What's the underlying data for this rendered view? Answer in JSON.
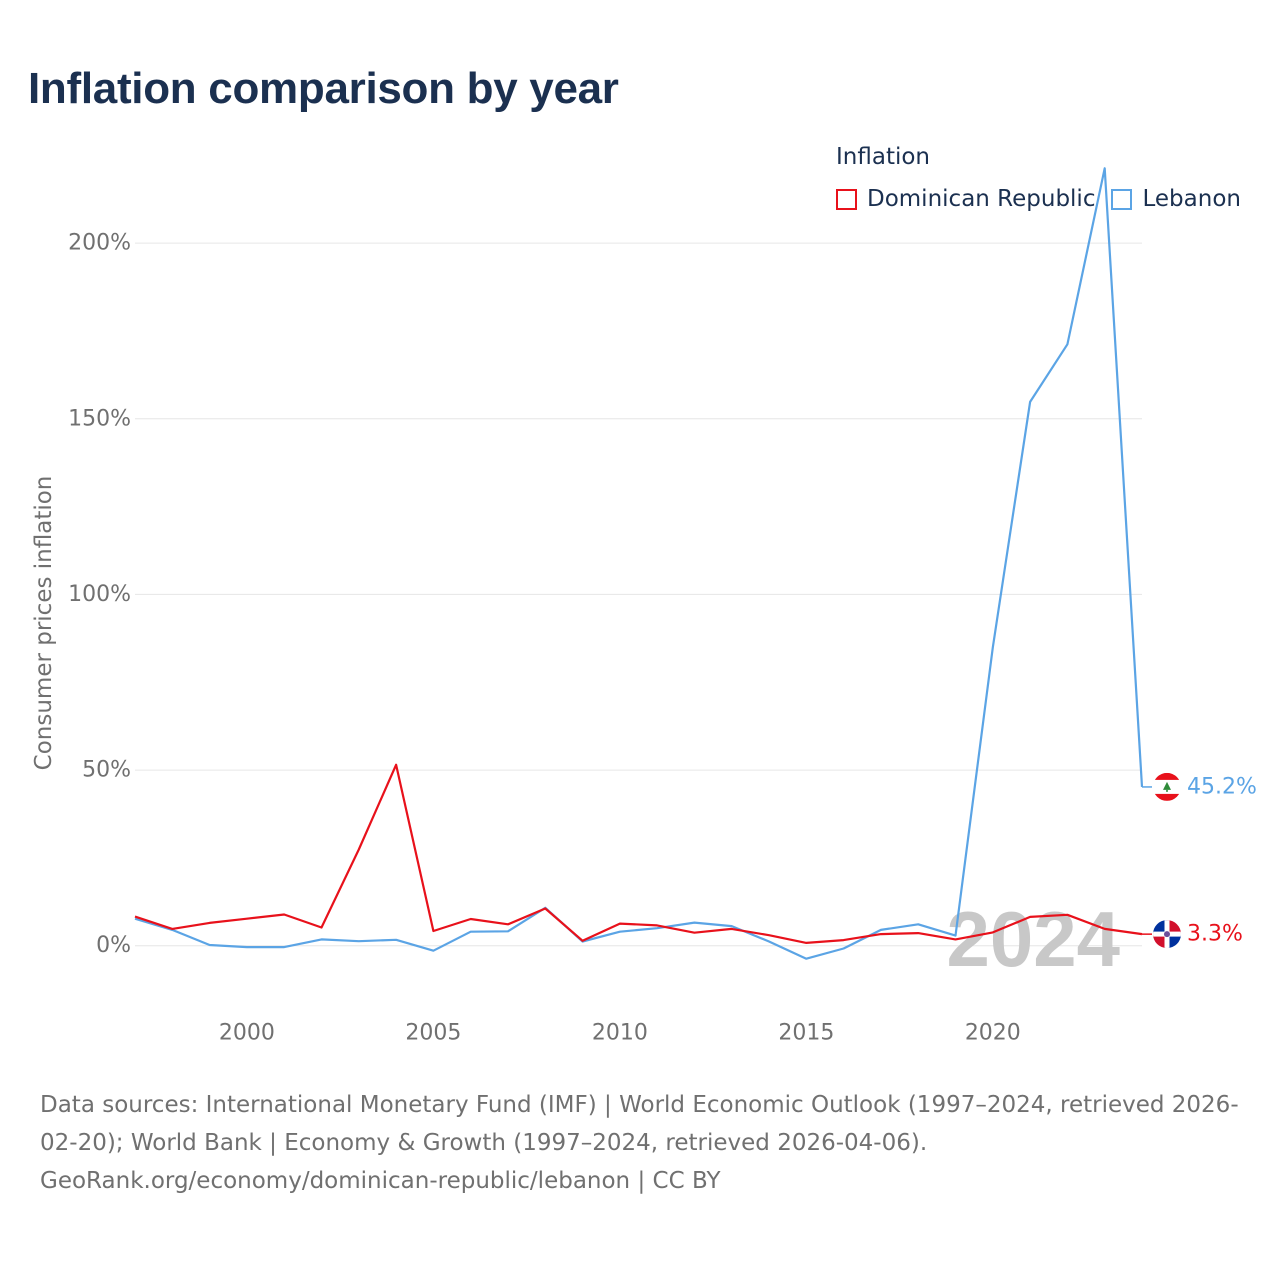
{
  "title": "Inflation comparison by year",
  "legend": {
    "title": "Inflation",
    "items": [
      {
        "label": "Dominican Republic",
        "color": "#e8111b"
      },
      {
        "label": "Lebanon",
        "color": "#5ba4e5"
      }
    ]
  },
  "watermark_year": "2024",
  "chart_data": {
    "type": "line",
    "title": "Inflation comparison by year",
    "xlabel": "",
    "ylabel": "Consumer prices inflation",
    "xlim": [
      1997,
      2024
    ],
    "ylim": [
      -20,
      210
    ],
    "x_ticks": [
      2000,
      2005,
      2010,
      2015,
      2020
    ],
    "x_tick_labels": [
      "2000",
      "2005",
      "2010",
      "2015",
      "2020"
    ],
    "y_ticks": [
      0,
      50,
      100,
      150,
      200
    ],
    "y_tick_labels": [
      "0%",
      "50%",
      "100%",
      "150%",
      "200%"
    ],
    "grid": true,
    "x": [
      1997,
      1998,
      1999,
      2000,
      2001,
      2002,
      2003,
      2004,
      2005,
      2006,
      2007,
      2008,
      2009,
      2010,
      2011,
      2012,
      2013,
      2014,
      2015,
      2016,
      2017,
      2018,
      2019,
      2020,
      2021,
      2022,
      2023,
      2024
    ],
    "series": [
      {
        "name": "Dominican Republic",
        "color": "#e8111b",
        "values": [
          8.3,
          4.8,
          6.5,
          7.7,
          8.9,
          5.2,
          27.4,
          51.5,
          4.2,
          7.6,
          6.1,
          10.6,
          1.4,
          6.3,
          5.8,
          3.7,
          4.8,
          3.0,
          0.8,
          1.6,
          3.3,
          3.6,
          1.8,
          3.8,
          8.2,
          8.8,
          4.8,
          3.3
        ],
        "end_label": "3.3%"
      },
      {
        "name": "Lebanon",
        "color": "#5ba4e5",
        "values": [
          7.7,
          4.5,
          0.2,
          -0.4,
          -0.4,
          1.8,
          1.3,
          1.7,
          -1.4,
          4.0,
          4.1,
          10.8,
          1.2,
          4.0,
          5.0,
          6.6,
          5.6,
          1.2,
          -3.7,
          -0.8,
          4.5,
          6.1,
          2.9,
          84.9,
          154.8,
          171.2,
          221.3,
          45.2
        ],
        "end_label": "45.2%"
      }
    ],
    "legend_position": "top-right"
  },
  "sources": {
    "line1": "Data sources: International Monetary Fund (IMF) | World Economic Outlook (1997–2024, retrieved 2026-02-20); World Bank | Economy & Growth (1997–2024, retrieved 2026-04-06).",
    "line2": "GeoRank.org/economy/dominican-republic/lebanon | CC BY"
  }
}
